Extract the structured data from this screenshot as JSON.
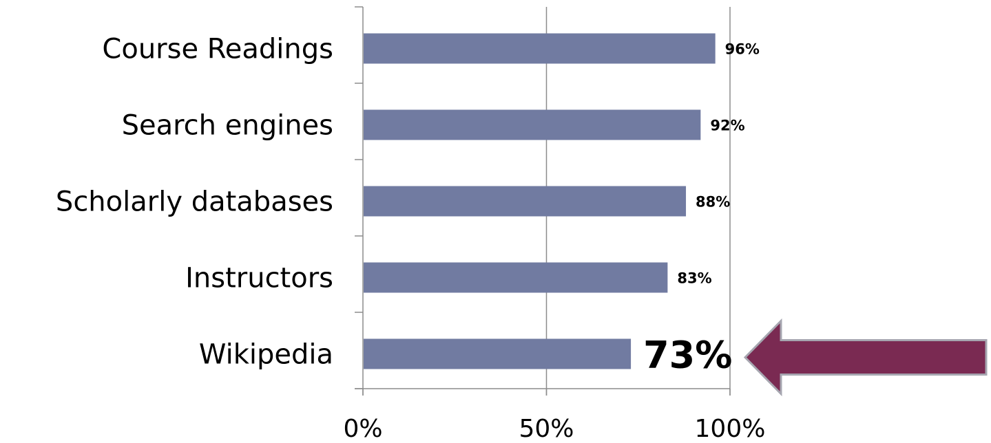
{
  "chart_data": {
    "type": "bar",
    "orientation": "horizontal",
    "categories": [
      "Course Readings",
      "Search engines",
      "Scholarly databases",
      "Instructors",
      "Wikipedia"
    ],
    "values": [
      96,
      92,
      88,
      83,
      73
    ],
    "data_labels": [
      "96%",
      "92%",
      "88%",
      "83%",
      "73%"
    ],
    "emphasized_category": "Wikipedia",
    "xlim": [
      0,
      100
    ],
    "x_ticks": [
      0,
      50,
      100
    ],
    "x_tick_labels": [
      "0%",
      "50%",
      "100%"
    ],
    "title": "",
    "xlabel": "",
    "ylabel": "",
    "grid": "vertical gridlines",
    "legend": "none"
  },
  "colors": {
    "bar": "#717ba1",
    "gridline": "#8c8c8c",
    "axis": "#8c8c8c",
    "arrow_fill": "#7a2a52",
    "arrow_stroke": "#a6a6b0",
    "text": "#000000"
  },
  "annotation": {
    "type": "arrow",
    "direction": "left",
    "points_to": "Wikipedia"
  }
}
